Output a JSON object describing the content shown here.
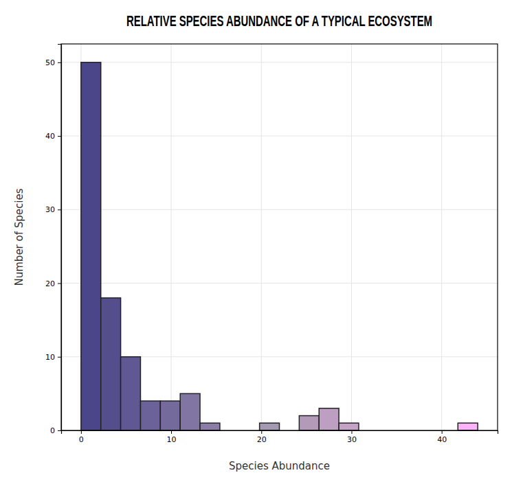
{
  "chart_data": {
    "type": "histogram",
    "title": "RELATIVE SPECIES ABUNDANCE OF A TYPICAL ECOSYSTEM",
    "x_label": "Species Abundance",
    "y_label": "Number of Species",
    "bins": [
      0,
      2.2,
      4.4,
      6.6,
      8.8,
      11,
      13.2,
      15.4,
      17.6,
      19.8,
      22,
      24.2,
      26.4,
      28.6,
      30.8,
      33,
      35.2,
      37.4,
      39.6,
      41.8,
      44
    ],
    "values": [
      50,
      18,
      10,
      4,
      4,
      5,
      1,
      0,
      0,
      1,
      0,
      2,
      3,
      1,
      0,
      0,
      0,
      0,
      0,
      1
    ],
    "colors": [
      "#4b4589",
      "#544e8c",
      "#5f5893",
      "#6b6299",
      "#756a9c",
      "#8075a3",
      "#8a7ca7",
      "#9282aa",
      "#9a89ad",
      "#a399b0",
      "#aa94b3",
      "#b39ab9",
      "#bc9fc1",
      "#c3a2c5",
      "#cca5ca",
      "#d5a8d0",
      "#dda9d7",
      "#e6abe0",
      "#eeade8",
      "#fbb2fb"
    ],
    "xlim": [
      -2.2,
      46.2
    ],
    "ylim": [
      0,
      52.5
    ],
    "xticks": [
      0,
      10,
      20,
      30,
      40
    ],
    "yticks": [
      0,
      10,
      20,
      30,
      40,
      50
    ],
    "grid": true
  }
}
